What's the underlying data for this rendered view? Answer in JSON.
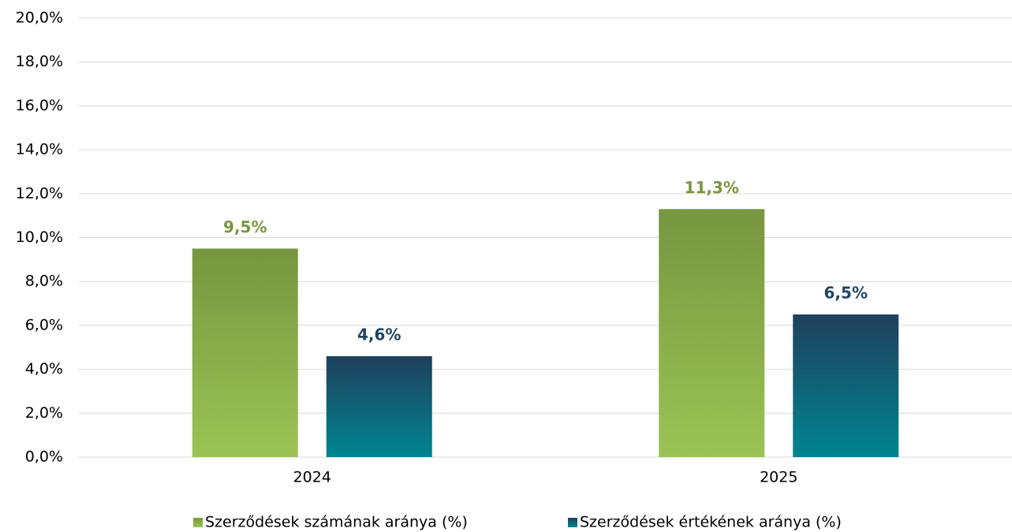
{
  "chart_data": {
    "type": "bar",
    "categories": [
      "2024",
      "2025"
    ],
    "series": [
      {
        "name": "Szerződések számának aránya (%)",
        "color": "#9bc455",
        "color_top": "#76963f",
        "label_color": "#77973f",
        "values": [
          9.5,
          11.3
        ],
        "value_labels": [
          "9,5%",
          "11,3%"
        ]
      },
      {
        "name": "Szerződések értékének aránya (%)",
        "color": "#008591",
        "color_top": "#1f405c",
        "label_color": "#1f4560",
        "values": [
          4.6,
          6.5
        ],
        "value_labels": [
          "4,6%",
          "6,5%"
        ]
      }
    ],
    "ylim": [
      0,
      20
    ],
    "yticks": [
      {
        "value": 0,
        "label": "0,0%"
      },
      {
        "value": 2,
        "label": "2,0%"
      },
      {
        "value": 4,
        "label": "4,0%"
      },
      {
        "value": 6,
        "label": "6,0%"
      },
      {
        "value": 8,
        "label": "8,0%"
      },
      {
        "value": 10,
        "label": "10,0%"
      },
      {
        "value": 12,
        "label": "12,0%"
      },
      {
        "value": 14,
        "label": "14,0%"
      },
      {
        "value": 16,
        "label": "16,0%"
      },
      {
        "value": 18,
        "label": "18,0%"
      },
      {
        "value": 20,
        "label": "20,0%"
      }
    ],
    "grid": true,
    "legend": "bottom"
  }
}
